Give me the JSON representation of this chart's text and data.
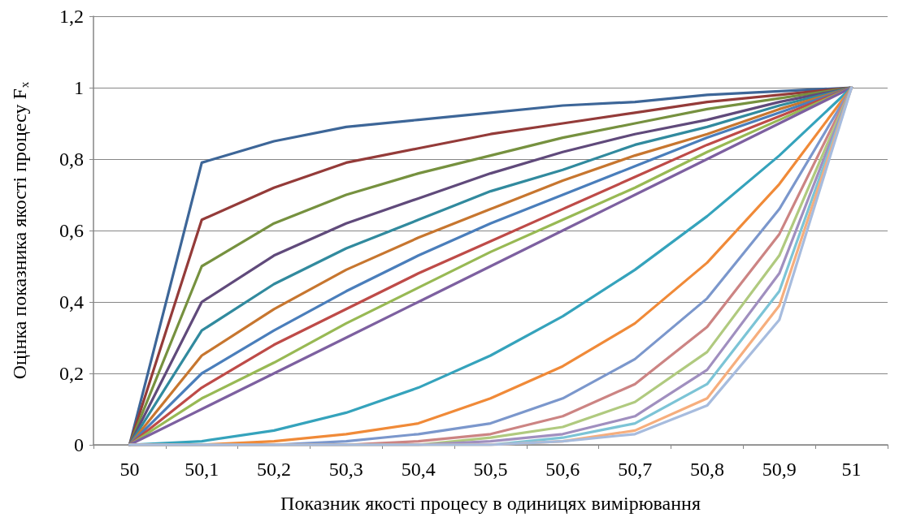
{
  "chart_data": {
    "type": "line",
    "xlabel": "Показник якості процесу в одиницях вимірювання",
    "ylabel": "Оцінка показника якості процесу F$_{x}$",
    "categories": [
      "50",
      "50,1",
      "50,2",
      "50,3",
      "50,4",
      "50,5",
      "50,6",
      "50,7",
      "50,8",
      "50,9",
      "51"
    ],
    "ylim": [
      0,
      1.2
    ],
    "yticks": [
      0,
      {
        "value": 0.2,
        "label": "0,2"
      },
      {
        "value": 0.4,
        "label": "0,4"
      },
      {
        "value": 0.6,
        "label": "0,6"
      },
      {
        "value": 0.8,
        "label": "0,8"
      },
      1,
      {
        "value": 1.2,
        "label": "1,2"
      }
    ],
    "grid": "y",
    "marker": "none",
    "line_style": "solid",
    "series": [
      {
        "color": "#3D6698",
        "values": [
          0,
          0.79,
          0.85,
          0.89,
          0.91,
          0.93,
          0.95,
          0.96,
          0.98,
          0.99,
          1
        ]
      },
      {
        "color": "#943B39",
        "values": [
          0,
          0.63,
          0.72,
          0.79,
          0.83,
          0.87,
          0.9,
          0.93,
          0.96,
          0.98,
          1
        ]
      },
      {
        "color": "#76913F",
        "values": [
          0,
          0.5,
          0.62,
          0.7,
          0.76,
          0.81,
          0.86,
          0.9,
          0.94,
          0.97,
          1
        ]
      },
      {
        "color": "#604A7B",
        "values": [
          0,
          0.4,
          0.53,
          0.62,
          0.69,
          0.76,
          0.82,
          0.87,
          0.91,
          0.96,
          1
        ]
      },
      {
        "color": "#318A9E",
        "values": [
          0,
          0.32,
          0.45,
          0.55,
          0.63,
          0.71,
          0.77,
          0.84,
          0.89,
          0.95,
          1
        ]
      },
      {
        "color": "#C7762F",
        "values": [
          0,
          0.25,
          0.38,
          0.49,
          0.58,
          0.66,
          0.74,
          0.81,
          0.87,
          0.94,
          1
        ]
      },
      {
        "color": "#4A7EBB",
        "values": [
          0,
          0.2,
          0.32,
          0.43,
          0.53,
          0.62,
          0.7,
          0.78,
          0.86,
          0.93,
          1
        ]
      },
      {
        "color": "#BE4B48",
        "values": [
          0,
          0.16,
          0.28,
          0.38,
          0.48,
          0.57,
          0.66,
          0.75,
          0.84,
          0.92,
          1
        ]
      },
      {
        "color": "#98B954",
        "values": [
          0,
          0.13,
          0.23,
          0.34,
          0.44,
          0.54,
          0.63,
          0.72,
          0.82,
          0.91,
          1
        ]
      },
      {
        "color": "#7D60A0",
        "values": [
          0,
          0.1,
          0.2,
          0.3,
          0.4,
          0.5,
          0.6,
          0.7,
          0.8,
          0.9,
          1
        ]
      },
      {
        "color": "#35A3BC",
        "values": [
          0,
          0.01,
          0.04,
          0.09,
          0.16,
          0.25,
          0.36,
          0.49,
          0.64,
          0.81,
          1
        ]
      },
      {
        "color": "#F08A38",
        "values": [
          0,
          0,
          0.01,
          0.03,
          0.06,
          0.13,
          0.22,
          0.34,
          0.51,
          0.73,
          1
        ]
      },
      {
        "color": "#7B97CC",
        "values": [
          0,
          0,
          0,
          0.01,
          0.03,
          0.06,
          0.13,
          0.24,
          0.41,
          0.66,
          1
        ]
      },
      {
        "color": "#CC8483",
        "values": [
          0,
          0,
          0,
          0,
          0.01,
          0.03,
          0.08,
          0.17,
          0.33,
          0.59,
          1
        ]
      },
      {
        "color": "#B0CA7F",
        "values": [
          0,
          0,
          0,
          0,
          0,
          0.02,
          0.05,
          0.12,
          0.26,
          0.53,
          1
        ]
      },
      {
        "color": "#A08FBF",
        "values": [
          0,
          0,
          0,
          0,
          0,
          0.01,
          0.03,
          0.08,
          0.21,
          0.48,
          1
        ]
      },
      {
        "color": "#7CC4D6",
        "values": [
          0,
          0,
          0,
          0,
          0,
          0,
          0.02,
          0.06,
          0.17,
          0.43,
          1
        ]
      },
      {
        "color": "#F6AE7D",
        "values": [
          0,
          0,
          0,
          0,
          0,
          0,
          0.01,
          0.04,
          0.13,
          0.39,
          1
        ]
      },
      {
        "color": "#A7BCDE",
        "values": [
          0,
          0,
          0,
          0,
          0,
          0,
          0.01,
          0.03,
          0.11,
          0.35,
          1
        ]
      }
    ]
  }
}
